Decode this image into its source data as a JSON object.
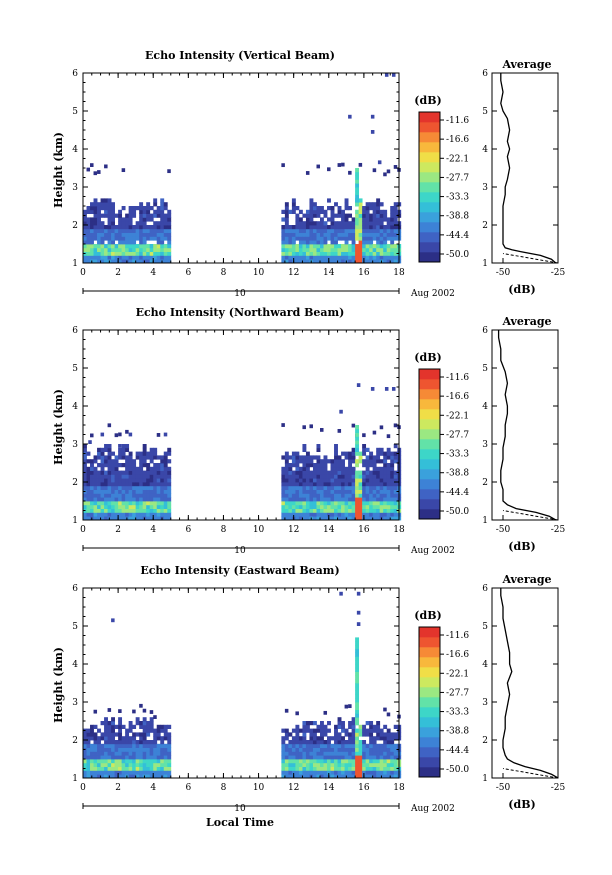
{
  "colors": {
    "scale": [
      "#2c2f86",
      "#3a47a8",
      "#3f63c4",
      "#3d82d6",
      "#3aa1dc",
      "#34bfd8",
      "#3dd6c8",
      "#62e2a8",
      "#9be882",
      "#cde95f",
      "#f0de47",
      "#f8b83c",
      "#f68a36",
      "#ee5530",
      "#e3342c"
    ]
  },
  "shared": {
    "date_label": "Aug 2002",
    "day_label": "10",
    "xlabel": "Local Time",
    "ylabel": "Height (km)",
    "colorbar_unit": "(dB)",
    "colorbar_ticks": [
      "-11.6",
      "-16.6",
      "-22.1",
      "-27.7",
      "-33.3",
      "-38.8",
      "-44.4",
      "-50.0"
    ],
    "colorbar_range": [
      -52,
      -9
    ],
    "avg_title": "Average",
    "avg_xlabel": "(dB)",
    "avg_xticks": [
      "-50",
      "-25"
    ]
  },
  "chart_data": [
    {
      "type": "heatmap",
      "title": "Echo Intensity (Vertical Beam)",
      "x_range": [
        0,
        18
      ],
      "y_range": [
        1,
        6
      ],
      "x_ticks": [
        0,
        2,
        4,
        6,
        8,
        10,
        12,
        14,
        16,
        18
      ],
      "y_ticks": [
        1,
        2,
        3,
        4,
        5,
        6
      ],
      "time_blocks": [
        [
          0,
          5
        ],
        [
          11.3,
          18
        ]
      ],
      "echo": {
        "layer_top_km": 2.5,
        "band_km": [
          1.2,
          1.5
        ],
        "gap_km": 1.5,
        "gap_width": 0.2,
        "plume_time": 15.6,
        "plume_top_km": 3.5,
        "sparse_layer_km": 3.4,
        "sparse_points": [
          [
            17.2,
            5.9
          ],
          [
            17.6,
            5.9
          ],
          [
            15.1,
            4.8
          ],
          [
            16.4,
            4.8
          ],
          [
            16.4,
            4.4
          ],
          [
            16.8,
            3.6
          ]
        ]
      },
      "average_profile": {
        "x_range": [
          -55,
          -25
        ],
        "height": [
          1.0,
          1.1,
          1.2,
          1.3,
          1.35,
          1.4,
          1.5,
          1.6,
          1.8,
          2.0,
          2.2,
          2.5,
          2.8,
          3.0,
          3.2,
          3.5,
          3.8,
          4.0,
          4.2,
          4.5,
          4.8,
          5.0,
          5.2,
          5.5,
          5.8,
          6.0
        ],
        "db": [
          -26,
          -28,
          -33,
          -42,
          -46,
          -49,
          -50,
          -50,
          -50,
          -50,
          -50,
          -50,
          -49,
          -49,
          -48,
          -47,
          -48,
          -47,
          -48,
          -47,
          -48,
          -50,
          -51,
          -50,
          -51,
          -51
        ]
      }
    },
    {
      "type": "heatmap",
      "title": "Echo Intensity (Northward Beam)",
      "x_range": [
        0,
        18
      ],
      "y_range": [
        1,
        6
      ],
      "x_ticks": [
        0,
        2,
        4,
        6,
        8,
        10,
        12,
        14,
        16,
        18
      ],
      "y_ticks": [
        1,
        2,
        3,
        4,
        5,
        6
      ],
      "time_blocks": [
        [
          0,
          5
        ],
        [
          11.3,
          18
        ]
      ],
      "echo": {
        "layer_top_km": 2.8,
        "band_km": [
          1.2,
          1.5
        ],
        "gap_km": 0,
        "gap_width": 0,
        "plume_time": 15.6,
        "plume_top_km": 3.5,
        "sparse_layer_km": 3.3,
        "sparse_points": [
          [
            16.4,
            4.4
          ],
          [
            17.2,
            4.4
          ],
          [
            17.6,
            4.4
          ],
          [
            15.6,
            4.5
          ],
          [
            14.6,
            3.8
          ],
          [
            1.0,
            3.2
          ],
          [
            2.6,
            3.2
          ],
          [
            4.6,
            3.2
          ],
          [
            0.3,
            3.0
          ],
          [
            2.0,
            2.9
          ]
        ]
      },
      "average_profile": {
        "x_range": [
          -55,
          -25
        ],
        "height": [
          1.0,
          1.1,
          1.2,
          1.3,
          1.4,
          1.5,
          1.6,
          1.8,
          2.0,
          2.3,
          2.6,
          2.9,
          3.2,
          3.5,
          3.8,
          4.0,
          4.3,
          4.6,
          4.9,
          5.2,
          5.5,
          5.8,
          6.0
        ],
        "db": [
          -26,
          -29,
          -35,
          -44,
          -48,
          -50,
          -50,
          -50,
          -51,
          -51,
          -50,
          -50,
          -49,
          -49,
          -48,
          -48,
          -49,
          -48,
          -49,
          -51,
          -51,
          -52,
          -52
        ]
      }
    },
    {
      "type": "heatmap",
      "title": "Echo Intensity (Eastward Beam)",
      "x_range": [
        0,
        18
      ],
      "y_range": [
        1,
        6
      ],
      "x_ticks": [
        0,
        2,
        4,
        6,
        8,
        10,
        12,
        14,
        16,
        18
      ],
      "y_ticks": [
        1,
        2,
        3,
        4,
        5,
        6
      ],
      "time_blocks": [
        [
          0,
          5
        ],
        [
          11.3,
          18
        ]
      ],
      "echo": {
        "layer_top_km": 2.4,
        "band_km": [
          1.2,
          1.5
        ],
        "gap_km": 0,
        "gap_width": 0,
        "plume_time": 15.6,
        "plume_top_km": 4.6,
        "sparse_layer_km": 2.7,
        "sparse_points": [
          [
            1.6,
            5.1
          ],
          [
            15.6,
            5.8
          ],
          [
            14.6,
            5.8
          ],
          [
            15.6,
            5.3
          ],
          [
            15.6,
            5.0
          ]
        ]
      },
      "average_profile": {
        "x_range": [
          -55,
          -25
        ],
        "height": [
          1.0,
          1.1,
          1.2,
          1.3,
          1.4,
          1.5,
          1.6,
          1.8,
          2.0,
          2.3,
          2.6,
          2.9,
          3.2,
          3.5,
          3.8,
          4.0,
          4.3,
          4.6,
          4.9,
          5.2,
          5.5,
          5.8,
          6.0
        ],
        "db": [
          -25,
          -28,
          -33,
          -40,
          -45,
          -48,
          -49,
          -50,
          -50,
          -49,
          -49,
          -48,
          -47,
          -48,
          -46,
          -47,
          -47,
          -48,
          -49,
          -50,
          -50,
          -51,
          -51
        ]
      }
    }
  ]
}
